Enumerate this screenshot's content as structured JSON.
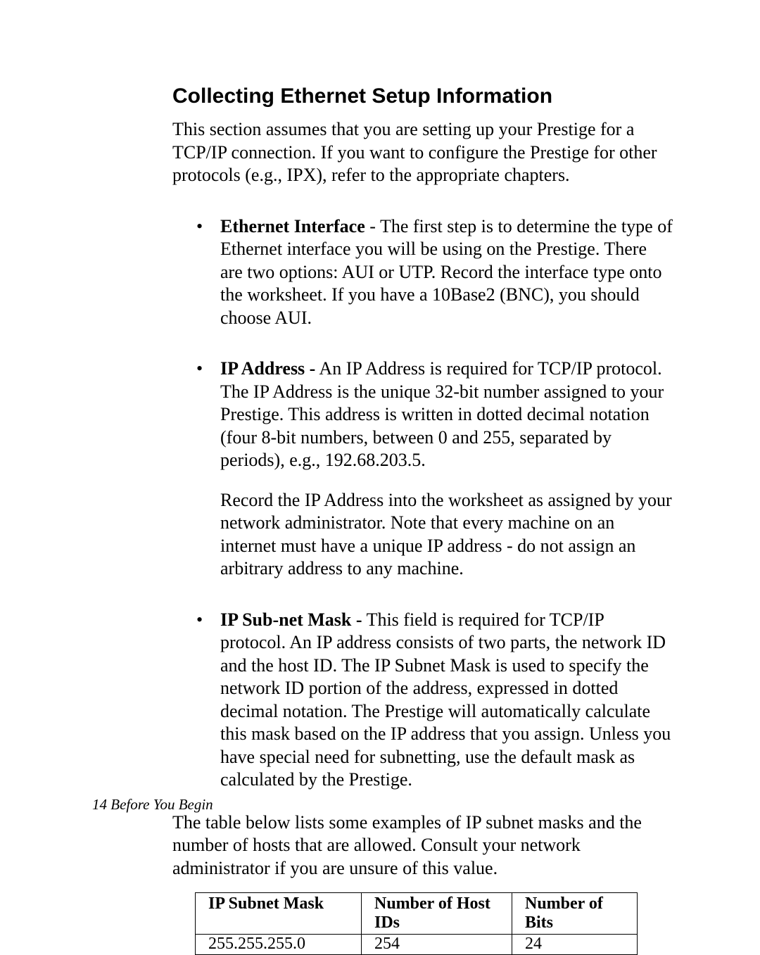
{
  "section_title": "Collecting Ethernet Setup Information",
  "intro_text": "This section assumes that you are setting up your Prestige for a TCP/IP connection. If you want to configure the Prestige for other protocols (e.g., IPX), refer to the appropriate chapters.",
  "bullets": [
    {
      "label": "Ethernet Interface",
      "separator": " - ",
      "text": "The first step is to determine the type of Ethernet interface you will be using on the Prestige. There are two options: AUI or UTP. Record the interface type onto the worksheet. If you have a 10Base2 (BNC), you should choose AUI."
    },
    {
      "label": "IP Address -",
      "separator": " ",
      "text": "An IP Address is required for TCP/IP protocol. The IP Address is the unique 32-bit number assigned to your Prestige. This address is written in dotted decimal notation (four 8-bit numbers, between 0 and 255, separated by periods), e.g., 192.68.203.5.",
      "sub": "Record the IP Address into the worksheet as assigned by your network administrator. Note that every machine on an internet must have a unique IP address - do not assign an arbitrary address to any machine."
    },
    {
      "label": "IP Sub-net Mask -",
      "separator": " ",
      "text": "This field is required for TCP/IP protocol. An IP address consists of two parts, the network ID and the host ID. The IP Subnet Mask is used to specify the network ID portion of the address, expressed in dotted decimal notation. The Prestige will automatically calculate this mask based on the IP address that you assign. Unless you have special need for subnetting, use the default mask as calculated by the Prestige."
    }
  ],
  "after_list": "The table below lists some examples of IP subnet masks and the number of hosts that are allowed. Consult your network administrator if you are unsure of this value.",
  "table": {
    "headers": [
      "IP Subnet Mask",
      "Number of Host IDs",
      "Number of Bits"
    ],
    "rows": [
      [
        "255.255.255.0",
        "254",
        "24"
      ]
    ],
    "col_widths": [
      "236px",
      "214px",
      "178px"
    ],
    "border_color": "#000000",
    "header_fontweight": "bold",
    "fontsize": 24
  },
  "footer": "14  Before You Begin",
  "colors": {
    "background": "#ffffff",
    "text": "#000000"
  },
  "fonts": {
    "heading_family": "Arial, Helvetica, sans-serif",
    "body_family": "Times New Roman, Times, serif",
    "heading_size": 30,
    "body_size": 26,
    "footer_size": 21
  }
}
